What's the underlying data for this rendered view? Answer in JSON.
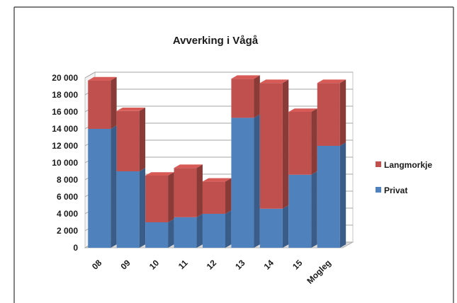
{
  "chart_data": {
    "type": "bar",
    "stacked": true,
    "style": "3d-column",
    "title": "Avverking i Vågå",
    "xlabel": "",
    "ylabel": "",
    "categories": [
      "08",
      "09",
      "10",
      "11",
      "12",
      "13",
      "14",
      "15",
      "Mogleg"
    ],
    "series": [
      {
        "name": "Privat",
        "color": "#4f81bd",
        "values": [
          14000,
          9000,
          3000,
          3600,
          4000,
          15300,
          4600,
          8600,
          12000
        ]
      },
      {
        "name": "Langmorkje",
        "color": "#c0504d",
        "values": [
          5700,
          7100,
          5500,
          5800,
          3800,
          4600,
          14800,
          7400,
          7400
        ]
      }
    ],
    "ylim": [
      0,
      20000
    ],
    "yticks": [
      "0",
      "2 000",
      "4 000",
      "6 000",
      "8 000",
      "10 000",
      "12 000",
      "14 000",
      "16 000",
      "18 000",
      "20 000"
    ],
    "grid": true,
    "legend_position": "right"
  }
}
